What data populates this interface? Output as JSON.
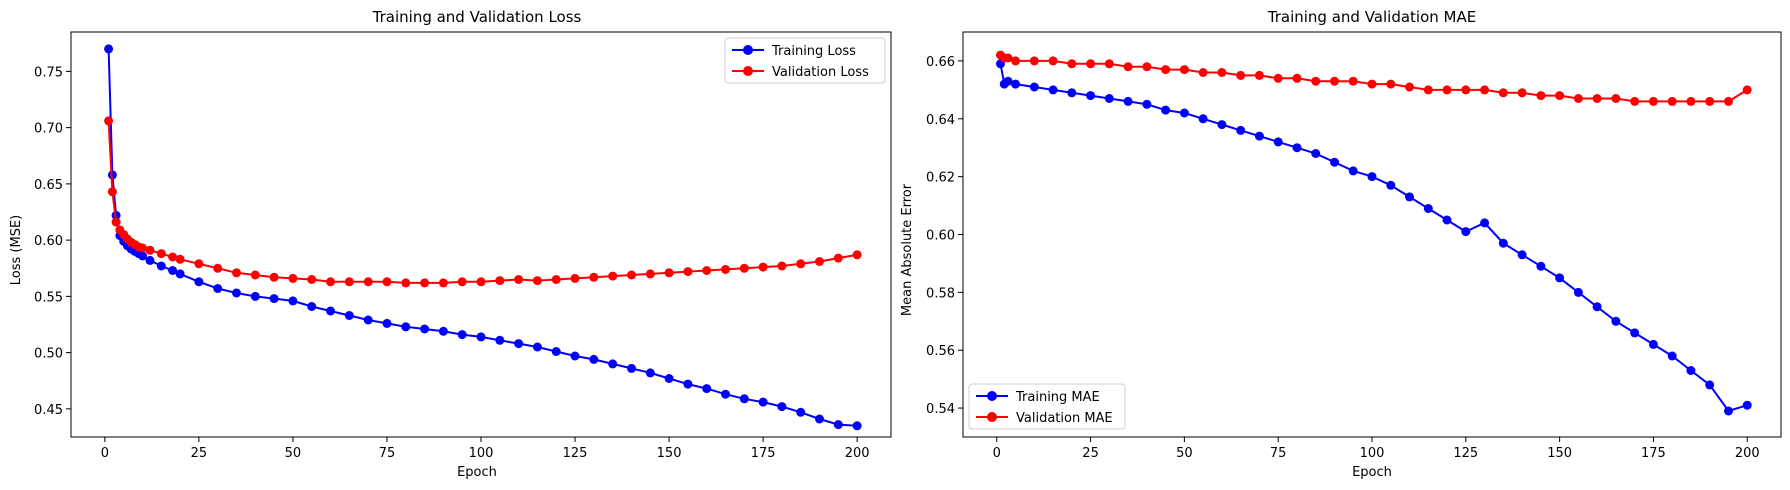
{
  "chart_data": [
    {
      "type": "line",
      "title": "Training and Validation Loss",
      "xlabel": "Epoch",
      "ylabel": "Loss (MSE)",
      "xlim": [
        -9,
        209
      ],
      "ylim": [
        0.425,
        0.785
      ],
      "xticks": [
        0,
        25,
        50,
        75,
        100,
        125,
        150,
        175,
        200
      ],
      "yticks": [
        0.45,
        0.5,
        0.55,
        0.6,
        0.65,
        0.7,
        0.75
      ],
      "ytick_format": 2,
      "grid": false,
      "legend": "upper-right",
      "series": [
        {
          "name": "Training Loss",
          "color": "#0000ff",
          "x": [
            1,
            2,
            3,
            4,
            5,
            6,
            7,
            8,
            9,
            10,
            12,
            15,
            18,
            20,
            25,
            30,
            35,
            40,
            45,
            50,
            55,
            60,
            65,
            70,
            75,
            80,
            85,
            90,
            95,
            100,
            105,
            110,
            115,
            120,
            125,
            130,
            135,
            140,
            145,
            150,
            155,
            160,
            165,
            170,
            175,
            180,
            185,
            190,
            195,
            200
          ],
          "y": [
            0.77,
            0.658,
            0.622,
            0.604,
            0.599,
            0.595,
            0.592,
            0.59,
            0.588,
            0.586,
            0.582,
            0.577,
            0.573,
            0.57,
            0.563,
            0.557,
            0.553,
            0.55,
            0.548,
            0.546,
            0.541,
            0.537,
            0.533,
            0.529,
            0.526,
            0.523,
            0.521,
            0.519,
            0.516,
            0.514,
            0.511,
            0.508,
            0.505,
            0.501,
            0.497,
            0.494,
            0.49,
            0.486,
            0.482,
            0.477,
            0.472,
            0.468,
            0.463,
            0.459,
            0.456,
            0.452,
            0.447,
            0.441,
            0.436,
            0.435
          ]
        },
        {
          "name": "Validation Loss",
          "color": "#ff0000",
          "x": [
            1,
            2,
            3,
            4,
            5,
            6,
            7,
            8,
            9,
            10,
            12,
            15,
            18,
            20,
            25,
            30,
            35,
            40,
            45,
            50,
            55,
            60,
            65,
            70,
            75,
            80,
            85,
            90,
            95,
            100,
            105,
            110,
            115,
            120,
            125,
            130,
            135,
            140,
            145,
            150,
            155,
            160,
            165,
            170,
            175,
            180,
            185,
            190,
            195,
            200
          ],
          "y": [
            0.706,
            0.643,
            0.616,
            0.609,
            0.605,
            0.601,
            0.598,
            0.596,
            0.594,
            0.593,
            0.591,
            0.588,
            0.585,
            0.583,
            0.579,
            0.575,
            0.571,
            0.569,
            0.567,
            0.566,
            0.565,
            0.563,
            0.563,
            0.563,
            0.563,
            0.562,
            0.562,
            0.562,
            0.563,
            0.563,
            0.564,
            0.565,
            0.564,
            0.565,
            0.566,
            0.567,
            0.568,
            0.569,
            0.57,
            0.571,
            0.572,
            0.573,
            0.574,
            0.575,
            0.576,
            0.577,
            0.579,
            0.581,
            0.584,
            0.587
          ]
        }
      ]
    },
    {
      "type": "line",
      "title": "Training and Validation MAE",
      "xlabel": "Epoch",
      "ylabel": "Mean Absolute Error",
      "xlim": [
        -9,
        209
      ],
      "ylim": [
        0.53,
        0.67
      ],
      "xticks": [
        0,
        25,
        50,
        75,
        100,
        125,
        150,
        175,
        200
      ],
      "yticks": [
        0.54,
        0.56,
        0.58,
        0.6,
        0.62,
        0.64,
        0.66
      ],
      "ytick_format": 2,
      "grid": false,
      "legend": "lower-left",
      "series": [
        {
          "name": "Training MAE",
          "color": "#0000ff",
          "x": [
            1,
            2,
            3,
            5,
            10,
            15,
            20,
            25,
            30,
            35,
            40,
            45,
            50,
            55,
            60,
            65,
            70,
            75,
            80,
            85,
            90,
            95,
            100,
            105,
            110,
            115,
            120,
            125,
            130,
            135,
            140,
            145,
            150,
            155,
            160,
            165,
            170,
            175,
            180,
            185,
            190,
            195,
            200
          ],
          "y": [
            0.659,
            0.652,
            0.653,
            0.652,
            0.651,
            0.65,
            0.649,
            0.648,
            0.647,
            0.646,
            0.645,
            0.643,
            0.642,
            0.64,
            0.638,
            0.636,
            0.634,
            0.632,
            0.63,
            0.628,
            0.625,
            0.622,
            0.62,
            0.617,
            0.613,
            0.609,
            0.605,
            0.601,
            0.604,
            0.597,
            0.593,
            0.589,
            0.585,
            0.58,
            0.575,
            0.57,
            0.566,
            0.562,
            0.558,
            0.553,
            0.548,
            0.539,
            0.541
          ]
        },
        {
          "name": "Validation MAE",
          "color": "#ff0000",
          "x": [
            1,
            2,
            3,
            5,
            10,
            15,
            20,
            25,
            30,
            35,
            40,
            45,
            50,
            55,
            60,
            65,
            70,
            75,
            80,
            85,
            90,
            95,
            100,
            105,
            110,
            115,
            120,
            125,
            130,
            135,
            140,
            145,
            150,
            155,
            160,
            165,
            170,
            175,
            180,
            185,
            190,
            195,
            200
          ],
          "y": [
            0.662,
            0.661,
            0.661,
            0.66,
            0.66,
            0.66,
            0.659,
            0.659,
            0.659,
            0.658,
            0.658,
            0.657,
            0.657,
            0.656,
            0.656,
            0.655,
            0.655,
            0.654,
            0.654,
            0.653,
            0.653,
            0.653,
            0.652,
            0.652,
            0.651,
            0.65,
            0.65,
            0.65,
            0.65,
            0.649,
            0.649,
            0.648,
            0.648,
            0.647,
            0.647,
            0.647,
            0.646,
            0.646,
            0.646,
            0.646,
            0.646,
            0.646,
            0.65
          ]
        }
      ]
    }
  ]
}
